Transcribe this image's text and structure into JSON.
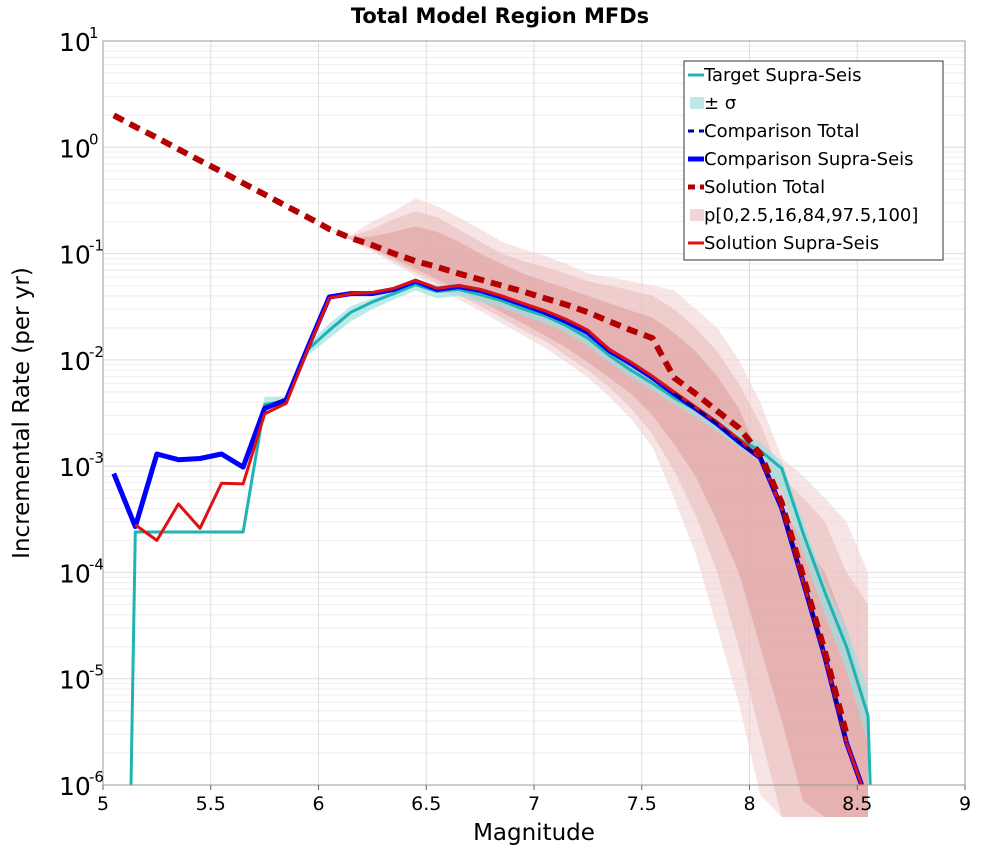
{
  "chart_data": {
    "type": "line",
    "title": "Total Model Region MFDs",
    "xlabel": "Magnitude",
    "ylabel": "Incremental Rate (per yr)",
    "xlim": [
      5,
      9
    ],
    "ylim": [
      1e-06,
      10
    ],
    "yscale": "log",
    "grid": true,
    "x_ticks": [
      "5",
      "5.5",
      "6",
      "6.5",
      "7",
      "7.5",
      "8",
      "8.5",
      "9"
    ],
    "y_ticks": [
      {
        "base": "10",
        "exp": "-6"
      },
      {
        "base": "10",
        "exp": "-5"
      },
      {
        "base": "10",
        "exp": "-4"
      },
      {
        "base": "10",
        "exp": "-3"
      },
      {
        "base": "10",
        "exp": "-2"
      },
      {
        "base": "10",
        "exp": "-1"
      },
      {
        "base": "10",
        "exp": "0"
      },
      {
        "base": "10",
        "exp": "1"
      }
    ],
    "legend_position": "top-right",
    "legend": [
      {
        "label": "Target Supra-Seis",
        "color": "#1fb3b3",
        "style": "line"
      },
      {
        "label": "± σ",
        "color": "#bde8ea",
        "style": "patch"
      },
      {
        "label": "Comparison Total",
        "color": "#00008b",
        "style": "dashed"
      },
      {
        "label": "Comparison Supra-Seis",
        "color": "#0000ff",
        "style": "thick"
      },
      {
        "label": "Solution Total",
        "color": "#b30000",
        "style": "thickdashed"
      },
      {
        "label": "p[0,2.5,16,84,97.5,100]",
        "color": "#f2d6d6",
        "style": "patch"
      },
      {
        "label": "Solution Supra-Seis",
        "color": "#e01010",
        "style": "line"
      }
    ],
    "x": [
      5.05,
      5.15,
      5.25,
      5.35,
      5.45,
      5.55,
      5.65,
      5.75,
      5.85,
      5.95,
      6.05,
      6.15,
      6.25,
      6.35,
      6.45,
      6.55,
      6.65,
      6.75,
      6.85,
      6.95,
      7.05,
      7.15,
      7.25,
      7.35,
      7.45,
      7.55,
      7.65,
      7.75,
      7.85,
      7.95,
      8.05,
      8.15,
      8.25,
      8.35,
      8.45,
      8.55
    ],
    "series": [
      {
        "name": "Solution Total p[0,100]",
        "role": "band",
        "color": "#f2d2d2",
        "opacity": 0.6,
        "lower": [
          2.0,
          1.56,
          1.23,
          0.96,
          0.75,
          0.59,
          0.46,
          0.36,
          0.28,
          0.22,
          0.17,
          0.133,
          0.104,
          0.08,
          0.062,
          0.048,
          0.037,
          0.029,
          0.022,
          0.017,
          0.013,
          0.0095,
          0.0068,
          0.0045,
          0.0028,
          0.0015,
          0.0005,
          0.00015,
          3e-05,
          6e-06,
          8e-07,
          5e-07,
          5e-07,
          5e-07,
          5e-07,
          5e-07
        ],
        "upper": [
          2.0,
          1.56,
          1.23,
          0.96,
          0.75,
          0.59,
          0.46,
          0.36,
          0.28,
          0.22,
          0.17,
          0.15,
          0.2,
          0.25,
          0.33,
          0.28,
          0.22,
          0.17,
          0.13,
          0.11,
          0.095,
          0.08,
          0.065,
          0.06,
          0.055,
          0.05,
          0.045,
          0.03,
          0.02,
          0.01,
          0.004,
          0.0012,
          0.0008,
          0.0005,
          0.0003,
          0.0001
        ]
      },
      {
        "name": "Solution Total p[2.5,97.5]",
        "role": "band",
        "color": "#eab9b9",
        "opacity": 0.55,
        "lower": [
          2.0,
          1.56,
          1.23,
          0.96,
          0.75,
          0.59,
          0.46,
          0.36,
          0.28,
          0.22,
          0.17,
          0.135,
          0.108,
          0.085,
          0.066,
          0.052,
          0.041,
          0.032,
          0.025,
          0.019,
          0.015,
          0.011,
          0.008,
          0.0055,
          0.0035,
          0.002,
          0.0009,
          0.00035,
          0.0001,
          2e-05,
          3e-06,
          5e-07,
          5e-07,
          5e-07,
          5e-07,
          5e-07
        ],
        "upper": [
          2.0,
          1.56,
          1.23,
          0.96,
          0.75,
          0.59,
          0.46,
          0.36,
          0.28,
          0.22,
          0.17,
          0.145,
          0.17,
          0.21,
          0.25,
          0.22,
          0.17,
          0.13,
          0.1,
          0.085,
          0.075,
          0.065,
          0.055,
          0.05,
          0.045,
          0.04,
          0.03,
          0.02,
          0.012,
          0.006,
          0.0025,
          0.0008,
          0.0005,
          0.0003,
          0.0001,
          5e-05
        ]
      },
      {
        "name": "Solution Total p[16,84]",
        "role": "band",
        "color": "#de9a9a",
        "opacity": 0.55,
        "lower": [
          2.0,
          1.56,
          1.23,
          0.96,
          0.75,
          0.59,
          0.46,
          0.36,
          0.28,
          0.22,
          0.17,
          0.138,
          0.112,
          0.09,
          0.072,
          0.057,
          0.045,
          0.036,
          0.028,
          0.022,
          0.017,
          0.013,
          0.0095,
          0.0068,
          0.0048,
          0.003,
          0.0016,
          0.0008,
          0.0003,
          0.0001,
          2e-05,
          4e-06,
          7e-07,
          5e-07,
          5e-07,
          5e-07
        ],
        "upper": [
          2.0,
          1.56,
          1.23,
          0.96,
          0.75,
          0.59,
          0.46,
          0.36,
          0.28,
          0.22,
          0.17,
          0.14,
          0.145,
          0.16,
          0.18,
          0.16,
          0.13,
          0.1,
          0.08,
          0.065,
          0.055,
          0.047,
          0.04,
          0.034,
          0.029,
          0.025,
          0.018,
          0.012,
          0.007,
          0.0035,
          0.0012,
          0.0004,
          0.0002,
          0.0001,
          3e-05,
          5e-06
        ]
      },
      {
        "name": "Target ± σ",
        "role": "band",
        "color": "#9fe0e0",
        "opacity": 0.7,
        "lower": [
          0.00085,
          0.00024,
          0.00024,
          0.00024,
          0.00024,
          0.00024,
          0.00024,
          0.0032,
          0.0038,
          0.011,
          0.016,
          0.023,
          0.03,
          0.037,
          0.045,
          0.038,
          0.04,
          0.035,
          0.031,
          0.026,
          0.022,
          0.018,
          0.0135,
          0.0095,
          0.0068,
          0.0052,
          0.0038,
          0.0029,
          0.0021,
          0.0015,
          0.0011,
          0.0006,
          0.00015,
          4e-05,
          1.2e-05,
          2.5e-06
        ],
        "upper": [
          0.00085,
          0.00024,
          0.00024,
          0.00024,
          0.00024,
          0.00024,
          0.00024,
          0.0045,
          0.0045,
          0.014,
          0.022,
          0.032,
          0.038,
          0.048,
          0.058,
          0.05,
          0.052,
          0.046,
          0.04,
          0.034,
          0.029,
          0.024,
          0.018,
          0.0125,
          0.009,
          0.0068,
          0.0049,
          0.0038,
          0.0028,
          0.0021,
          0.0017,
          0.0011,
          0.0003,
          8e-05,
          3e-05,
          8e-06
        ]
      },
      {
        "name": "Target Supra-Seis",
        "role": "line",
        "color": "#1fb3b3",
        "width": 3,
        "values": [
          null,
          0.00024,
          0.00024,
          0.00024,
          0.00024,
          0.00024,
          0.00024,
          0.0038,
          0.0041,
          0.0125,
          0.019,
          0.028,
          0.035,
          0.042,
          0.051,
          0.044,
          0.046,
          0.041,
          0.036,
          0.03,
          0.026,
          0.021,
          0.016,
          0.011,
          0.008,
          0.006,
          0.0044,
          0.0034,
          0.0025,
          0.0018,
          0.0014,
          0.00095,
          0.00023,
          6.5e-05,
          2e-05,
          4.5e-06
        ]
      },
      {
        "name": "Comparison Supra-Seis",
        "role": "line",
        "color": "#0000ff",
        "width": 5,
        "values": [
          0.00085,
          0.00027,
          0.0013,
          0.00115,
          0.00118,
          0.0013,
          0.00098,
          0.0035,
          0.0042,
          0.013,
          0.039,
          0.042,
          0.042,
          0.046,
          0.055,
          0.046,
          0.049,
          0.045,
          0.039,
          0.033,
          0.028,
          0.023,
          0.018,
          0.0122,
          0.0092,
          0.0068,
          0.0048,
          0.0035,
          0.0025,
          0.0017,
          0.0012,
          0.0004,
          8e-05,
          1.6e-05,
          2.5e-06,
          null
        ]
      },
      {
        "name": "Solution Supra-Seis",
        "role": "line",
        "color": "#e01010",
        "width": 3,
        "values": [
          null,
          0.00028,
          0.0002,
          0.00044,
          0.00026,
          0.00069,
          0.00068,
          0.0031,
          0.0039,
          0.0125,
          0.038,
          0.042,
          0.043,
          0.047,
          0.056,
          0.047,
          0.05,
          0.046,
          0.04,
          0.034,
          0.029,
          0.024,
          0.019,
          0.0125,
          0.0095,
          0.007,
          0.005,
          0.0036,
          0.0026,
          0.0018,
          0.0012,
          0.0004,
          8e-05,
          1.6e-05,
          2.5e-06,
          null
        ]
      },
      {
        "name": "Comparison Total",
        "role": "line",
        "color": "#00008b",
        "width": 3,
        "dash": "9,6",
        "values": [
          null,
          null,
          null,
          null,
          null,
          null,
          null,
          null,
          null,
          null,
          null,
          null,
          null,
          null,
          null,
          null,
          null,
          null,
          null,
          null,
          null,
          null,
          null,
          null,
          null,
          null,
          0.0048,
          0.0035,
          0.0025,
          0.0017,
          0.0012,
          0.0004,
          8e-05,
          1.6e-05,
          2.5e-06,
          null
        ]
      },
      {
        "name": "Solution Total",
        "role": "line",
        "color": "#b30000",
        "width": 6,
        "dash": "11,7",
        "values": [
          2.0,
          1.56,
          1.23,
          0.96,
          0.75,
          0.59,
          0.46,
          0.36,
          0.28,
          0.22,
          0.17,
          0.14,
          0.12,
          0.1,
          0.085,
          0.075,
          0.065,
          0.057,
          0.05,
          0.044,
          0.038,
          0.033,
          0.028,
          0.023,
          0.019,
          0.016,
          0.0068,
          0.0048,
          0.0033,
          0.0023,
          0.0013,
          0.00045,
          9e-05,
          1.8e-05,
          3e-06,
          null
        ]
      }
    ]
  }
}
